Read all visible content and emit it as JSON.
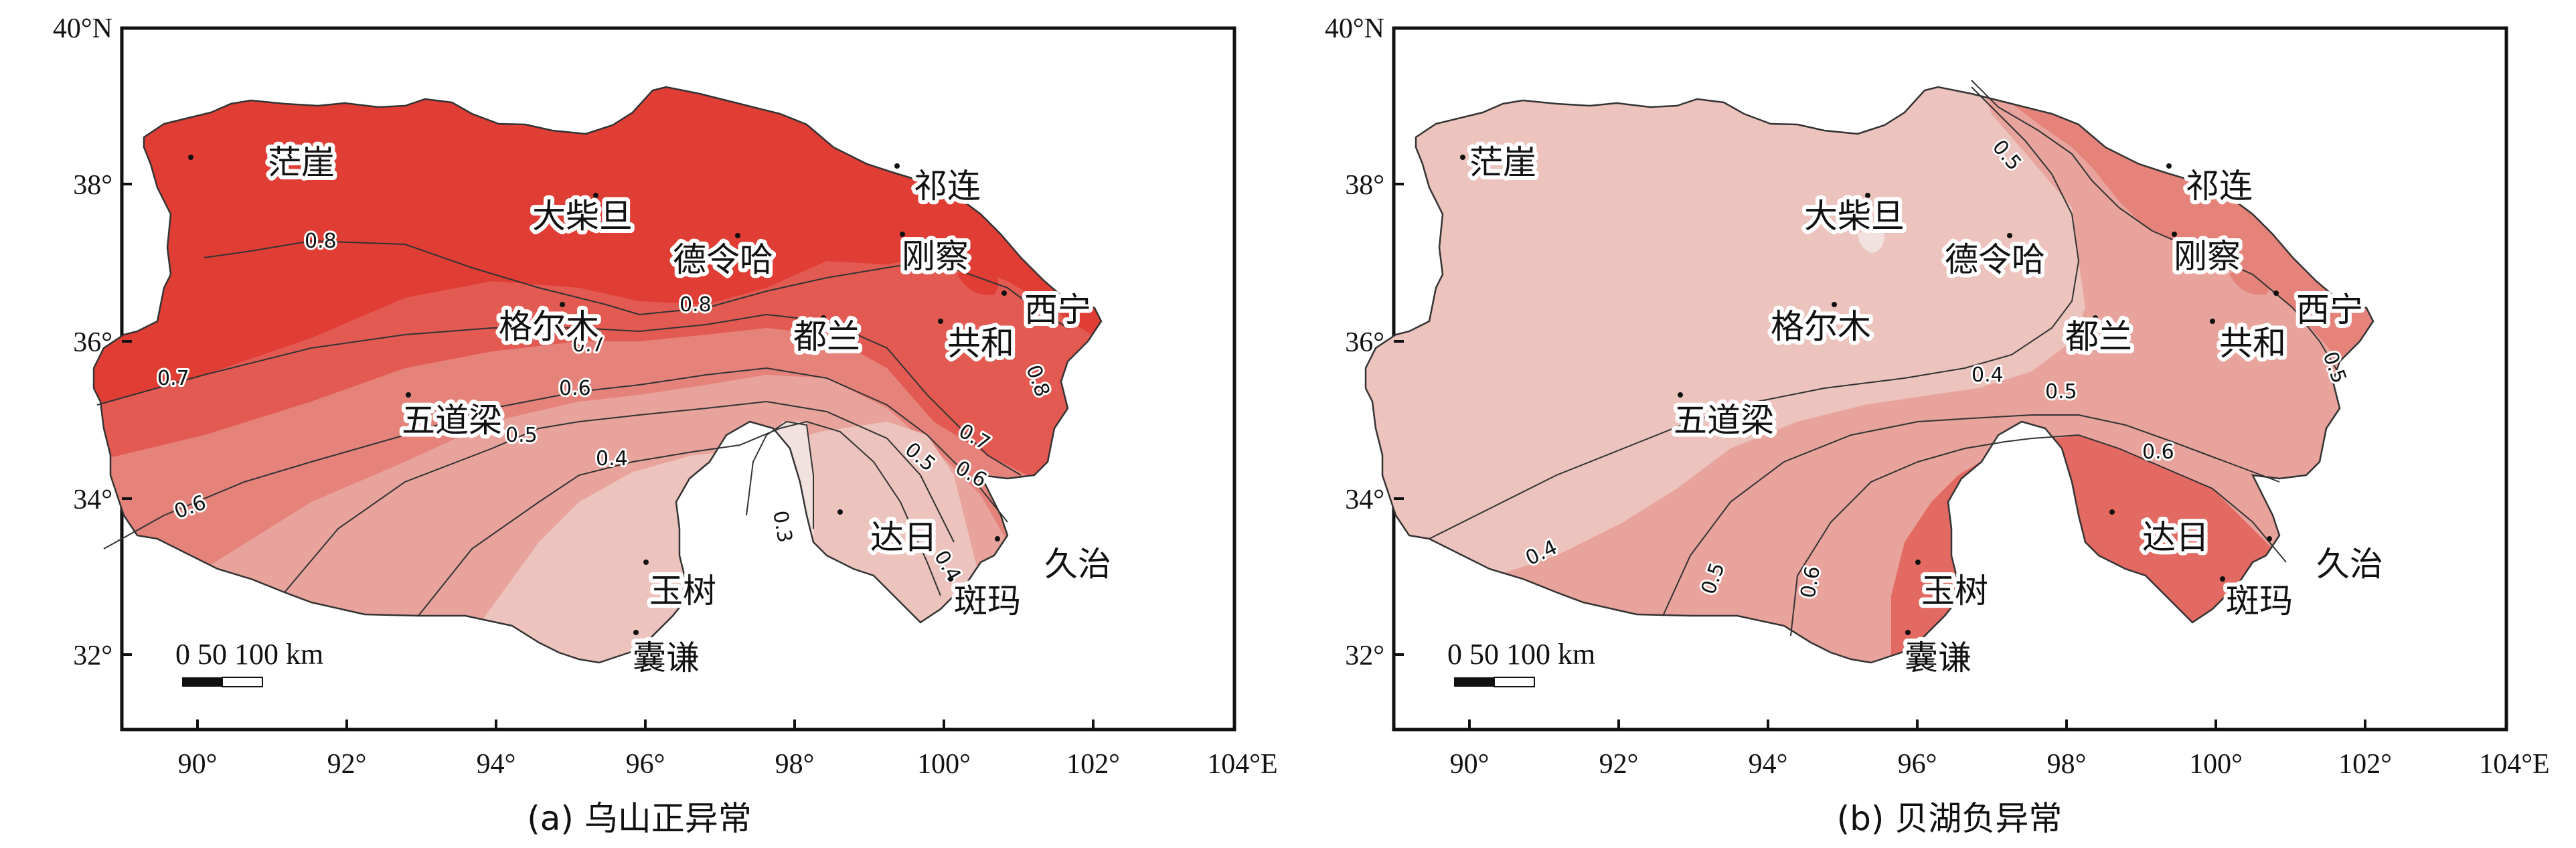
{
  "axes": {
    "x_ticks": [
      "90°",
      "92°",
      "94°",
      "96°",
      "98°",
      "100°",
      "102°",
      "104°E"
    ],
    "y_ticks": [
      "40°N",
      "38°",
      "36°",
      "34°",
      "32°"
    ]
  },
  "scale_bar": {
    "label": "0 50 100 km"
  },
  "stations": {
    "mangya": "茫崖",
    "dachaidan": "大柴旦",
    "delingha": "德令哈",
    "qilian": "祁连",
    "gangcha": "刚察",
    "xining": "西宁",
    "golmud": "格尔木",
    "dulan": "都兰",
    "gonghe": "共和",
    "wudaoliang": "五道梁",
    "dari": "达日",
    "jiuzhi": "久治",
    "banma": "斑玛",
    "yushu": "玉树",
    "nangqian": "囊谦"
  },
  "panel_a": {
    "caption": "(a) 乌山正异常",
    "contour_labels": {
      "c08a": "0.8",
      "c08b": "0.8",
      "c08c": "0.8",
      "c07a": "0.7",
      "c07b": "0.7",
      "c07c": "0.7",
      "c06a": "0.6",
      "c06b": "0.6",
      "c06c": "0.6",
      "c05a": "0.5",
      "c05b": "0.5",
      "c04a": "0.4",
      "c04b": "0.4",
      "c03": "0.3"
    },
    "colors": {
      "c09": "#e03d35",
      "c08": "#e25a52",
      "c07": "#e5837b",
      "c06": "#e8a39c",
      "c04": "#ecc3bd",
      "c03": "#f2e2df"
    }
  },
  "panel_b": {
    "caption": "(b) 贝湖负异常",
    "contour_labels": {
      "c05a": "0.5",
      "c05b": "0.5",
      "c05c": "0.5",
      "c05d": "0.5",
      "c04a": "0.4",
      "c04b": "0.4",
      "c06a": "0.6",
      "c06b": "0.6"
    },
    "colors": {
      "c04": "#ecc3bd",
      "c05": "#e8a39c",
      "c05h": "#e5837b",
      "c06": "#e36a62"
    }
  }
}
